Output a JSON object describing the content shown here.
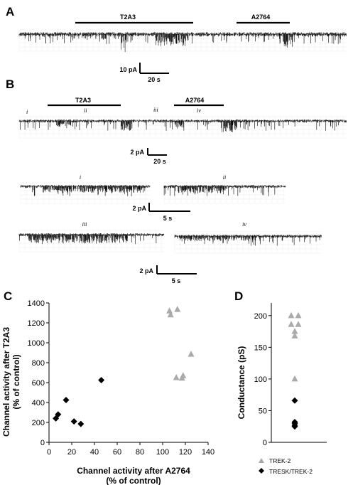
{
  "panel_labels": [
    "A",
    "B",
    "C",
    "D"
  ],
  "panelA": {
    "bars": [
      "T2A3",
      "A2764"
    ],
    "scale": {
      "current": "10 pA",
      "time": "20 s"
    }
  },
  "panelB": {
    "bars": [
      "T2A3",
      "A2764"
    ],
    "segments": [
      "i",
      "ii",
      "iii",
      "iv"
    ],
    "scale_main": {
      "current": "2 pA",
      "time": "20 s"
    },
    "scale_row1": {
      "current": "2 pA",
      "time": "5 s"
    },
    "scale_row2": {
      "current": "2 pA",
      "time": "5 s"
    }
  },
  "chart_data": [
    {
      "type": "scatter",
      "panel": "C",
      "xlabel": [
        "Channel activity after A2764",
        "(% of control)"
      ],
      "ylabel": [
        "Channel activity after T2A3",
        "(% of control)"
      ],
      "xlim": [
        0,
        140
      ],
      "ylim": [
        0,
        1400
      ],
      "xticks": [
        0,
        20,
        40,
        60,
        80,
        100,
        120,
        140
      ],
      "yticks": [
        0,
        200,
        400,
        600,
        800,
        1000,
        1200,
        1400
      ],
      "series": [
        {
          "marker": "diamond",
          "color": "#000000",
          "points": [
            [
              6,
              240
            ],
            [
              8,
              280
            ],
            [
              15,
              425
            ],
            [
              22,
              210
            ],
            [
              28,
              185
            ],
            [
              46,
              625
            ]
          ]
        },
        {
          "marker": "triangle",
          "color": "#aaaaaa",
          "points": [
            [
              106,
              1320
            ],
            [
              107,
              1280
            ],
            [
              113,
              1335
            ],
            [
              112,
              650
            ],
            [
              117,
              645
            ],
            [
              118,
              670
            ],
            [
              125,
              885
            ]
          ]
        }
      ]
    },
    {
      "type": "scatter",
      "panel": "D",
      "ylabel": "Conductance (pS)",
      "ylim": [
        0,
        220
      ],
      "yticks": [
        0,
        50,
        100,
        150,
        200
      ],
      "series": [
        {
          "name": "TREK-2",
          "marker": "triangle",
          "color": "#aaaaaa",
          "values": [
            200,
            200,
            186,
            186,
            175,
            168,
            100
          ]
        },
        {
          "name": "TRESK/TREK-2",
          "marker": "diamond",
          "color": "#000000",
          "values": [
            66,
            32,
            30,
            27,
            25
          ]
        }
      ]
    }
  ]
}
